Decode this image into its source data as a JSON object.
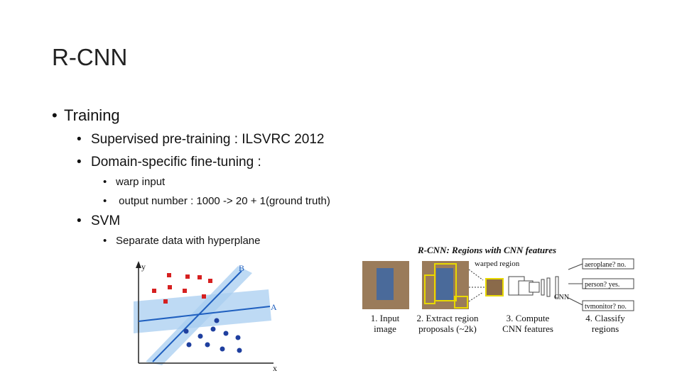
{
  "slide": {
    "title": "R-CNN",
    "bullets": [
      {
        "text": "Training",
        "children": [
          {
            "text": "Supervised pre-training : ILSVRC 2012"
          },
          {
            "text": "Domain-specific fine-tuning :",
            "children": [
              {
                "text": "warp input"
              },
              {
                "text": " output number : 1000 -> 20 + 1(ground truth)"
              }
            ]
          }
        ]
      },
      {
        "text": "SVM",
        "children": [
          {
            "text": "Separate data with hyperplane"
          }
        ]
      }
    ],
    "svm_figure": {
      "y_label": "y",
      "x_label": "x",
      "line_b": "B",
      "line_a": "A"
    },
    "rcnn_figure": {
      "title": "R-CNN: Regions with CNN features",
      "warped_label": "warped region",
      "cnn_label": "CNN",
      "outputs": [
        "aeroplane? no.",
        "person? yes.",
        "tvmonitor? no."
      ],
      "steps": [
        [
          "1. Input",
          "image"
        ],
        [
          "2. Extract region",
          "proposals (~2k)"
        ],
        [
          "3. Compute",
          "CNN features"
        ],
        [
          "4. Classify",
          "regions"
        ]
      ]
    }
  }
}
